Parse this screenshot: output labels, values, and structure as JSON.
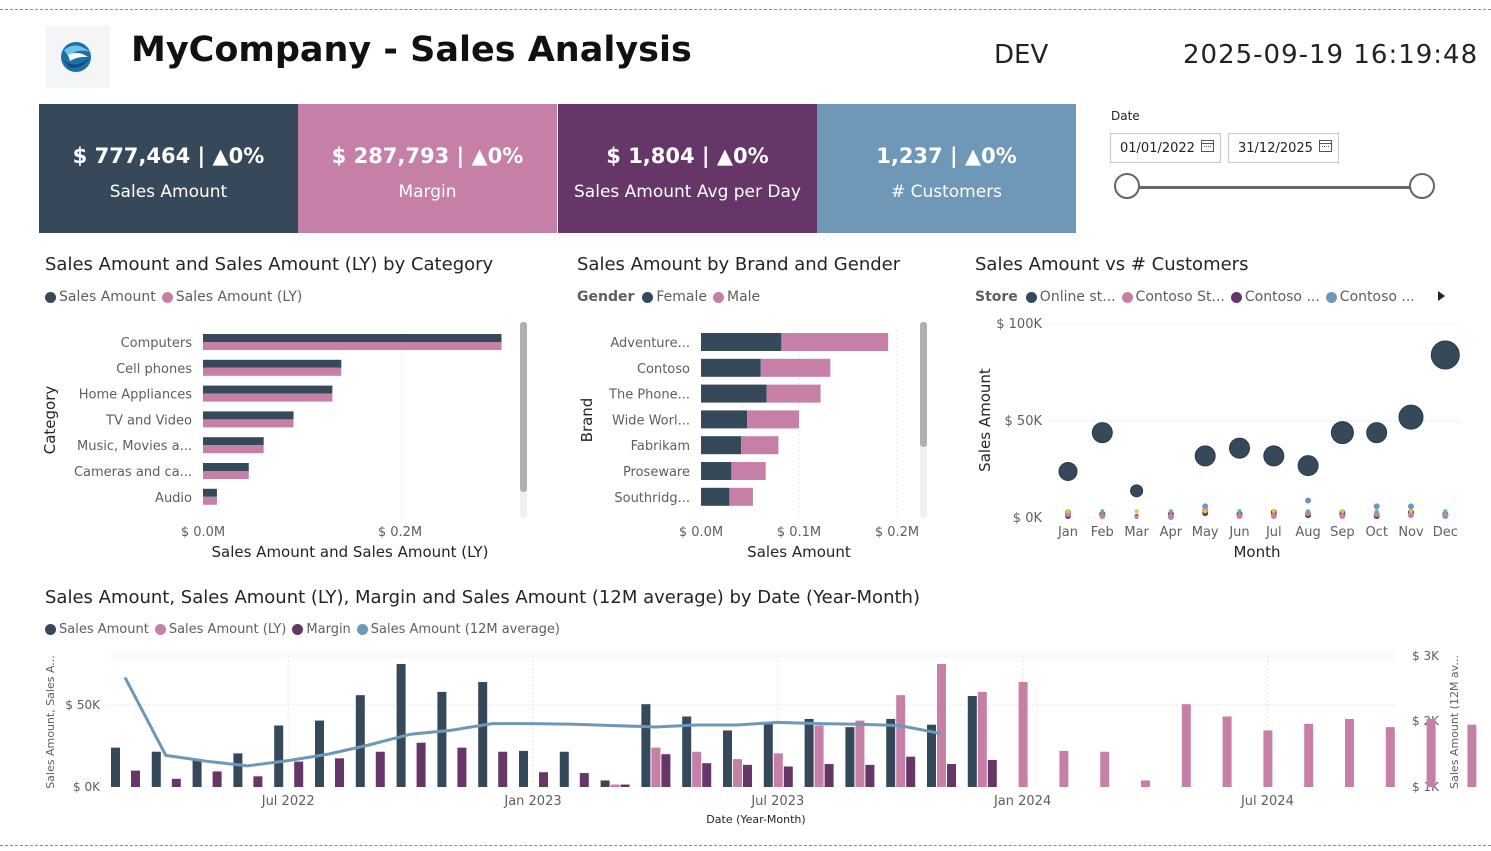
{
  "header": {
    "title": "MyCompany - Sales Analysis",
    "environment": "DEV",
    "timestamp": "2025-09-19 16:19:48"
  },
  "kpis": [
    {
      "value": "$ 777,464 | ▲0%",
      "label": "Sales Amount",
      "color": "#36495a"
    },
    {
      "value": "$ 287,793 | ▲0%",
      "label": "Margin",
      "color": "#c680a8"
    },
    {
      "value": "$ 1,804 | ▲0%",
      "label": "Sales Amount Avg per Day",
      "color": "#673668"
    },
    {
      "value": "1,237 | ▲0%",
      "label": "# Customers",
      "color": "#6f97b8"
    }
  ],
  "date_filter": {
    "label": "Date",
    "start": "01/01/2022",
    "end": "31/12/2025"
  },
  "colors": {
    "sales": "#36495a",
    "sales_ly": "#c680a8",
    "margin": "#673668",
    "avg12m": "#6f97b8"
  },
  "chart_data": [
    {
      "id": "category",
      "type": "bar",
      "orientation": "horizontal",
      "title": "Sales Amount and Sales Amount (LY) by Category",
      "xlabel": "Sales Amount and Sales Amount (LY)",
      "ylabel": "Category",
      "categories": [
        "Computers",
        "Cell phones",
        "Home Appliances",
        "TV and Video",
        "Music, Movies a...",
        "Cameras and ca...",
        "Audio"
      ],
      "series": [
        {
          "name": "Sales Amount",
          "values": [
            0.3,
            0.139,
            0.13,
            0.091,
            0.061,
            0.046,
            0.014
          ]
        },
        {
          "name": "Sales Amount (LY)",
          "values": [
            0.3,
            0.139,
            0.13,
            0.091,
            0.061,
            0.046,
            0.014
          ]
        }
      ],
      "xticks": [
        "$ 0.0M",
        "$ 0.2M"
      ],
      "xlim": [
        0,
        0.33
      ],
      "legend_position": "top-left"
    },
    {
      "id": "brand",
      "type": "bar",
      "orientation": "horizontal",
      "stacked": true,
      "title": "Sales Amount by Brand and Gender",
      "xlabel": "Sales Amount",
      "ylabel": "Brand",
      "legend_title": "Gender",
      "categories": [
        "Adventure...",
        "Contoso",
        "The Phone...",
        "Wide Worl...",
        "Fabrikam",
        "Proseware",
        "Southridg..."
      ],
      "series": [
        {
          "name": "Female",
          "values": [
            0.082,
            0.061,
            0.067,
            0.047,
            0.041,
            0.031,
            0.029
          ]
        },
        {
          "name": "Male",
          "values": [
            0.109,
            0.071,
            0.055,
            0.053,
            0.038,
            0.035,
            0.024
          ]
        }
      ],
      "xticks": [
        "$ 0.0M",
        "$ 0.1M",
        "$ 0.2M"
      ],
      "xlim": [
        0,
        0.22
      ],
      "legend_position": "top-left"
    },
    {
      "id": "customers",
      "type": "scatter",
      "title": "Sales Amount vs # Customers",
      "xlabel": "Month",
      "ylabel": "Sales Amount",
      "legend_title": "Store",
      "legend": [
        "Online st...",
        "Contoso St...",
        "Contoso ...",
        "Contoso ..."
      ],
      "categories": [
        "Jan",
        "Feb",
        "Mar",
        "Apr",
        "May",
        "Jun",
        "Jul",
        "Aug",
        "Sep",
        "Oct",
        "Nov",
        "Dec"
      ],
      "yticks": [
        "$ 100K",
        "$ 50K",
        "$ 0K"
      ],
      "ylim": [
        0,
        100000
      ],
      "series": [
        {
          "name": "Online st...",
          "values": [
            24000,
            44000,
            14000,
            0,
            32000,
            36000,
            32000,
            27000,
            44000,
            44000,
            52000,
            84000
          ],
          "sizes": [
            9,
            10,
            6,
            0,
            10,
            10,
            10,
            10,
            11,
            10,
            12,
            14
          ]
        },
        {
          "name": "Contoso St...",
          "values": [
            2000,
            1000,
            500,
            1000,
            4000,
            1000,
            1000,
            2500,
            1000,
            2000,
            1500,
            1500
          ],
          "sizes": [
            3,
            3,
            2,
            3,
            3,
            3,
            3,
            3,
            3,
            3,
            3,
            3
          ]
        },
        {
          "name": "Contoso ...",
          "values": [
            1000,
            2000,
            1000,
            2000,
            2500,
            2000,
            3000,
            1500,
            2000,
            1000,
            3000,
            2000
          ],
          "sizes": [
            3,
            3,
            2,
            3,
            3,
            3,
            3,
            3,
            3,
            3,
            3,
            3
          ]
        },
        {
          "name": "Contoso ...",
          "values": [
            3000,
            1500,
            500,
            500,
            6000,
            1500,
            1500,
            9000,
            3000,
            6000,
            6000,
            1000
          ],
          "sizes": [
            3,
            3,
            2,
            3,
            3,
            3,
            3,
            3,
            3,
            3,
            3,
            3
          ]
        }
      ],
      "legend_position": "top-left"
    },
    {
      "id": "timeline",
      "type": "bar",
      "title": "Sales Amount, Sales Amount (LY), Margin and Sales Amount (12M average) by Date (Year-Month)",
      "xlabel": "Date (Year-Month)",
      "ylabel": "Sales Amount, Sales A...",
      "ylabel_right": "Sales Amount (12M av...",
      "categories": [
        "2022-03",
        "2022-04",
        "2022-05",
        "2022-06",
        "2022-07",
        "2022-08",
        "2022-09",
        "2022-10",
        "2022-11",
        "2022-12",
        "2023-01",
        "2023-02",
        "2023-03",
        "2023-04",
        "2023-05",
        "2023-06",
        "2023-07",
        "2023-08",
        "2023-09",
        "2023-10",
        "2023-11",
        "2023-12",
        "2024-01",
        "2024-02",
        "2024-03",
        "2024-04",
        "2024-05",
        "2024-06",
        "2024-07",
        "2024-08",
        "2024-09",
        "2024-10",
        "2024-11",
        "2024-12",
        "2025-01",
        "2025-02",
        "2025-03",
        "2025-04",
        "2025-05"
      ],
      "xticks": [
        "Jul 2022",
        "Jan 2023",
        "Jul 2023",
        "Jan 2024",
        "Jul 2024"
      ],
      "yticks_left": [
        "$ 50K",
        "$ 0K"
      ],
      "yticks_right": [
        "$ 3K",
        "$ 2K",
        "$ 1K"
      ],
      "ylim_left": [
        0,
        75000
      ],
      "ylim_right": [
        1000,
        3000
      ],
      "series": [
        {
          "name": "Sales Amount",
          "values": [
            24000,
            21500,
            17000,
            20500,
            37500,
            40500,
            56000,
            75000,
            58000,
            64000,
            22000,
            21500,
            4000,
            50500,
            43000,
            34500,
            38500,
            41500,
            36500,
            41500,
            38000,
            55500,
            null,
            null,
            null,
            null,
            null,
            null,
            null,
            null,
            null,
            null,
            null,
            null,
            null,
            null,
            null,
            null,
            null
          ]
        },
        {
          "name": "Sales Amount (LY)",
          "values": [
            null,
            null,
            null,
            null,
            null,
            null,
            null,
            null,
            null,
            null,
            null,
            null,
            1500,
            24000,
            21500,
            17000,
            20500,
            37500,
            40500,
            56000,
            75000,
            58000,
            64000,
            22000,
            21500,
            4000,
            50500,
            43000,
            34500,
            38500,
            41500,
            36500,
            41500,
            38000,
            55500,
            null,
            null,
            null,
            null
          ]
        },
        {
          "name": "Margin",
          "values": [
            10000,
            5000,
            9500,
            6500,
            15500,
            17500,
            21500,
            27000,
            24000,
            21500,
            9000,
            8500,
            1500,
            20000,
            14500,
            13500,
            12500,
            14000,
            13500,
            18500,
            14000,
            16500,
            null,
            null,
            null,
            null,
            null,
            null,
            null,
            null,
            null,
            null,
            null,
            null,
            null,
            null,
            null,
            null,
            null
          ]
        },
        {
          "name": "Sales Amount (12M average)",
          "axis": "right",
          "values": [
            2660,
            1480,
            1390,
            1320,
            1400,
            1500,
            1640,
            1800,
            1860,
            1960,
            1960,
            1950,
            1930,
            1910,
            1940,
            1940,
            1980,
            1960,
            1950,
            1930,
            1810,
            null,
            null,
            null,
            null,
            null,
            null,
            null,
            null,
            null,
            null,
            null,
            null,
            null,
            null,
            null,
            null,
            null,
            null
          ]
        }
      ],
      "legend_position": "top-left"
    }
  ]
}
